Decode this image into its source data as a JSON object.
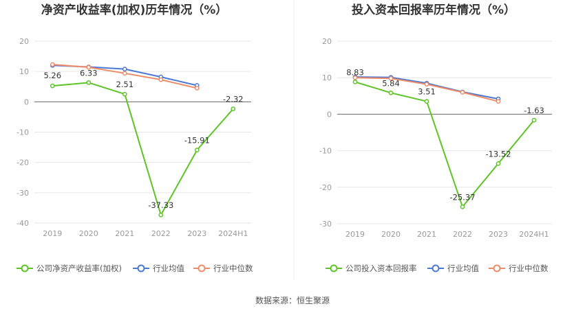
{
  "source": "数据来源：恒生聚源",
  "chart_data": [
    {
      "type": "line",
      "title": "净资产收益率(加权)历年情况（%）",
      "categories": [
        "2019",
        "2020",
        "2021",
        "2022",
        "2023",
        "2024H1"
      ],
      "ylim": [
        -40,
        20
      ],
      "yticks": [
        20,
        10,
        0,
        -10,
        -20,
        -30,
        -40
      ],
      "grid": true,
      "legend_position": "bottom",
      "series": [
        {
          "name": "公司净资产收益率(加权)",
          "color": "#5cc424",
          "values": [
            5.26,
            6.33,
            2.51,
            -37.33,
            -15.91,
            -2.32
          ],
          "labels": [
            "5.26",
            "6.33",
            "2.51",
            "-37.33",
            "-15.91",
            "-2.32"
          ]
        },
        {
          "name": "行业均值",
          "color": "#4a78d6",
          "values": [
            12.0,
            11.5,
            10.8,
            8.2,
            5.4,
            null
          ]
        },
        {
          "name": "行业中位数",
          "color": "#ef8b66",
          "values": [
            12.3,
            11.4,
            9.4,
            7.3,
            4.5,
            null
          ]
        }
      ]
    },
    {
      "type": "line",
      "title": "投入资本回报率历年情况（%）",
      "categories": [
        "2019",
        "2020",
        "2021",
        "2022",
        "2023",
        "2024H1"
      ],
      "ylim": [
        -30,
        20
      ],
      "yticks": [
        20,
        10,
        0,
        -10,
        -20,
        -30
      ],
      "grid": true,
      "legend_position": "bottom",
      "series": [
        {
          "name": "公司投入资本回报率",
          "color": "#5cc424",
          "values": [
            8.83,
            5.84,
            3.51,
            -25.37,
            -13.52,
            -1.63
          ],
          "labels": [
            "8.83",
            "5.84",
            "3.51",
            "-25.37",
            "-13.52",
            "-1.63"
          ]
        },
        {
          "name": "行业均值",
          "color": "#4a78d6",
          "values": [
            10.2,
            10.1,
            8.5,
            6.1,
            4.2,
            null
          ]
        },
        {
          "name": "行业中位数",
          "color": "#ef8b66",
          "values": [
            10.0,
            9.8,
            8.2,
            6.0,
            3.5,
            null
          ]
        }
      ]
    }
  ]
}
